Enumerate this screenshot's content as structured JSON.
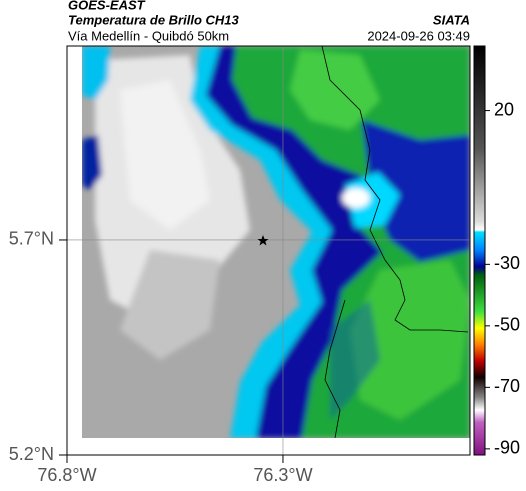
{
  "header": {
    "source": "GOES-EAST",
    "title": "Temperatura de Brillo CH13",
    "subtitle": "Vía Medellín - Quibdó 50km",
    "org": "SIATA",
    "timestamp": "2024-09-26 03:49"
  },
  "map": {
    "lat_lim": [
      5.2,
      6.151
    ],
    "lon_lim": [
      -76.8,
      -75.867
    ],
    "lat_ticks": [
      {
        "value": 5.7,
        "label": "5.7°N"
      },
      {
        "value": 5.2,
        "label": "5.2°N"
      }
    ],
    "lon_ticks": [
      {
        "value": -76.8,
        "label": "76.8°W"
      },
      {
        "value": -76.3,
        "label": "76.3°W"
      }
    ]
  },
  "colorbar": {
    "lim": [
      -92,
      41
    ],
    "ticks": [
      20,
      -30,
      -50,
      -70,
      -90
    ]
  }
}
